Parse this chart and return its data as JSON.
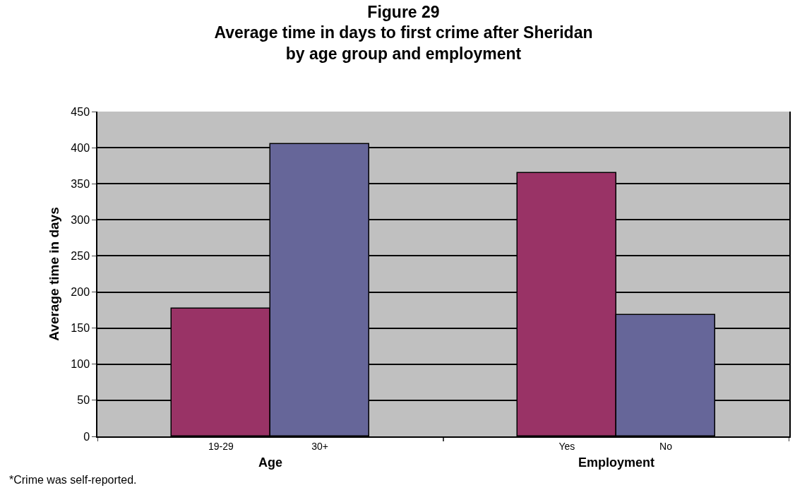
{
  "chart_data": {
    "type": "bar",
    "title": "Figure 29\nAverage time in days to first crime after Sheridan\nby age group and employment",
    "ylabel": "Average time in days",
    "categories": [
      "19-29",
      "30+",
      "Yes",
      "No"
    ],
    "values": [
      177,
      405,
      365,
      168
    ],
    "colors": [
      "#993366",
      "#666699",
      "#993366",
      "#666699"
    ],
    "ylim": [
      0,
      450
    ],
    "yticks": [
      0,
      50,
      100,
      150,
      200,
      250,
      300,
      350,
      400,
      450
    ],
    "grid": "y",
    "annotations": [
      "Age",
      "Employment",
      "*Crime was self-reported."
    ]
  }
}
